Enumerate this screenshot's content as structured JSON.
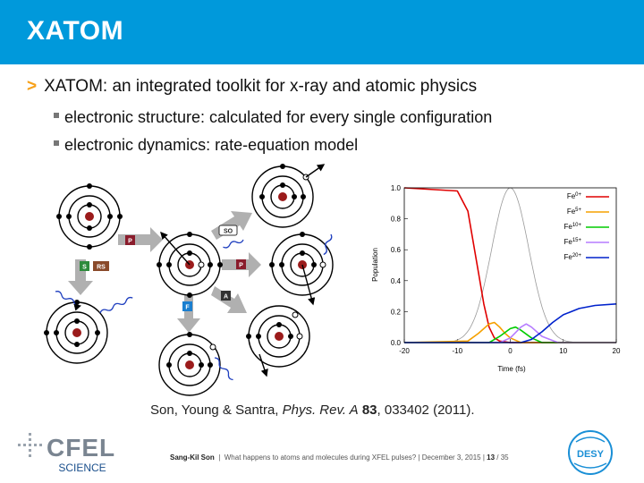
{
  "header": {
    "title": "XATOM"
  },
  "bullets": {
    "main": "XATOM: an integrated toolkit for x-ray and atomic physics",
    "sub1": "electronic structure: calculated for every single configuration",
    "sub2": "electronic dynamics: rate-equation model"
  },
  "diagram": {
    "labels": {
      "P1": "P",
      "S": "S",
      "RS": "RS",
      "SO": "SO",
      "P2": "P",
      "A": "A",
      "F": "F"
    }
  },
  "citation": {
    "authors": "Son, Young & Santra, ",
    "journal": "Phys. Rev. A",
    "volume": "83",
    "rest": ", 033402 (2011)."
  },
  "footer": {
    "author": "Sang-Kil Son",
    "talk": "What happens to atoms and molecules during XFEL pulses?",
    "date": "December 3, 2015",
    "page": "13",
    "total": "35"
  },
  "logos": {
    "cfel_top": "CFEL",
    "cfel_bottom": "SCIENCE",
    "desy": "DESY"
  },
  "chart_data": {
    "type": "line",
    "title": "",
    "xlabel": "Time (fs)",
    "ylabel": "Population",
    "xlim": [
      -20,
      20
    ],
    "ylim": [
      0,
      1
    ],
    "xticks": [
      "-20",
      "-10",
      "0",
      "10",
      "20"
    ],
    "yticks": [
      "0.0",
      "0.2",
      "0.4",
      "0.6",
      "0.8",
      "1.0"
    ],
    "legend_position": "top-right",
    "series": [
      {
        "name": "Fe0+",
        "base": "Fe",
        "sup": "0+",
        "color": "#e00000",
        "x": [
          -20,
          -10,
          -8,
          -6,
          -5,
          -4,
          -3,
          -2,
          0,
          20
        ],
        "y": [
          1.0,
          0.98,
          0.85,
          0.45,
          0.25,
          0.1,
          0.03,
          0.01,
          0.0,
          0.0
        ]
      },
      {
        "name": "Fe5+",
        "base": "Fe",
        "sup": "5+",
        "color": "#f5a000",
        "x": [
          -20,
          -8,
          -6,
          -4,
          -3,
          -2,
          -1,
          0,
          2,
          20
        ],
        "y": [
          0,
          0.01,
          0.06,
          0.12,
          0.13,
          0.1,
          0.06,
          0.03,
          0.0,
          0.0
        ]
      },
      {
        "name": "Fe10+",
        "base": "Fe",
        "sup": "10+",
        "color": "#00cc00",
        "x": [
          -20,
          -4,
          -2,
          0,
          1,
          2,
          4,
          6,
          20
        ],
        "y": [
          0,
          0.0,
          0.04,
          0.09,
          0.1,
          0.08,
          0.03,
          0.0,
          0.0
        ]
      },
      {
        "name": "Fe15+",
        "base": "Fe",
        "sup": "15+",
        "color": "#b57cff",
        "x": [
          -20,
          -2,
          0,
          2,
          3,
          4,
          6,
          9,
          20
        ],
        "y": [
          0,
          0.0,
          0.03,
          0.1,
          0.12,
          0.1,
          0.04,
          0.0,
          0.0
        ]
      },
      {
        "name": "Fe20+",
        "base": "Fe",
        "sup": "20+",
        "color": "#0022cc",
        "x": [
          -20,
          2,
          4,
          6,
          8,
          10,
          13,
          16,
          20
        ],
        "y": [
          0,
          0.0,
          0.02,
          0.07,
          0.13,
          0.18,
          0.22,
          0.24,
          0.25
        ]
      }
    ],
    "pulse_envelope": {
      "color": "#999999",
      "x0": 0,
      "sigma": 3.5,
      "peak": 1.0
    }
  }
}
